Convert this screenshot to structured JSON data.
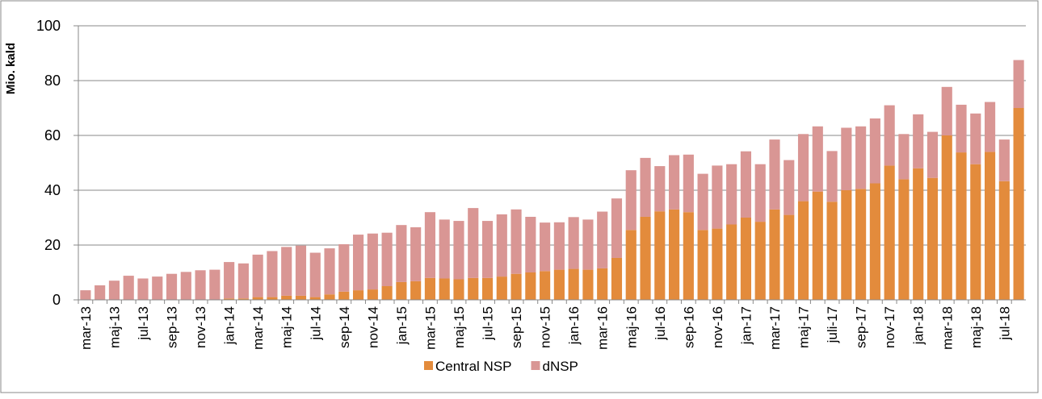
{
  "chart_data": {
    "type": "stacked-bar",
    "y_label": "Mio. kald",
    "categories": [
      "mar-13",
      null,
      "maj-13",
      null,
      "jul-13",
      null,
      "sep-13",
      null,
      "nov-13",
      null,
      "jan-14",
      null,
      "mar-14",
      null,
      "maj-14",
      null,
      "jul-14",
      null,
      "sep-14",
      null,
      "nov-14",
      null,
      "jan-15",
      null,
      "mar-15",
      null,
      "maj-15",
      null,
      "jul-15",
      null,
      "sep-15",
      null,
      "nov-15",
      null,
      "jan-16",
      null,
      "mar-16",
      null,
      "maj-16",
      null,
      "jul-16",
      null,
      "sep-16",
      null,
      "nov-16",
      null,
      "jan-17",
      null,
      "mar-17",
      null,
      "maj-17",
      null,
      "juli-17",
      null,
      "sep-17",
      null,
      "nov-17",
      null,
      "jan-18",
      null,
      "mar-18",
      null,
      "maj-18",
      null,
      "jul-18",
      null
    ],
    "series": [
      {
        "name": "Central NSP",
        "color": "#e38b3c",
        "values": [
          0,
          0,
          0,
          0,
          0,
          0,
          0,
          0,
          0,
          0,
          0.5,
          0.5,
          1,
          1,
          1.5,
          1.5,
          1,
          2,
          3,
          3.5,
          3.8,
          5,
          6.5,
          6.8,
          8,
          7.8,
          7.5,
          8,
          8,
          8.5,
          9.5,
          10,
          10.5,
          11,
          11.3,
          11,
          11.5,
          15.3,
          25.5,
          30.3,
          32.3,
          33,
          32,
          25.5,
          26,
          27.5,
          30,
          28.5,
          33,
          31,
          36,
          39.5,
          35.8,
          40,
          40.5,
          42.5,
          49,
          44,
          48,
          44.5,
          60,
          53.8,
          49.5,
          54,
          43.3,
          70
        ]
      },
      {
        "name": "dNSP",
        "color": "#d99694",
        "values": [
          3.5,
          5.3,
          7,
          8.8,
          7.8,
          8.5,
          9.5,
          10.2,
          10.8,
          11,
          13.3,
          12.8,
          15.5,
          16.8,
          17.8,
          18.3,
          16.2,
          16.8,
          17.3,
          20.3,
          20.4,
          19.5,
          20.8,
          19.7,
          24,
          21.5,
          21.3,
          25.5,
          20.8,
          22.7,
          23.5,
          20.3,
          17.7,
          17.3,
          18.9,
          18.3,
          20.7,
          21.7,
          21.8,
          21.5,
          16.5,
          19.8,
          21,
          20.5,
          23,
          22,
          24.2,
          21,
          25.5,
          20,
          24.5,
          23.8,
          18.5,
          22.8,
          22.8,
          23.7,
          22,
          16.5,
          19.7,
          16.8,
          17.7,
          17.4,
          18.5,
          18.2,
          15.2,
          17.5
        ]
      }
    ],
    "ylim": [
      0,
      100
    ],
    "yticks": [
      0,
      20,
      40,
      60,
      80,
      100
    ],
    "grid": true,
    "legend": "bottom"
  }
}
